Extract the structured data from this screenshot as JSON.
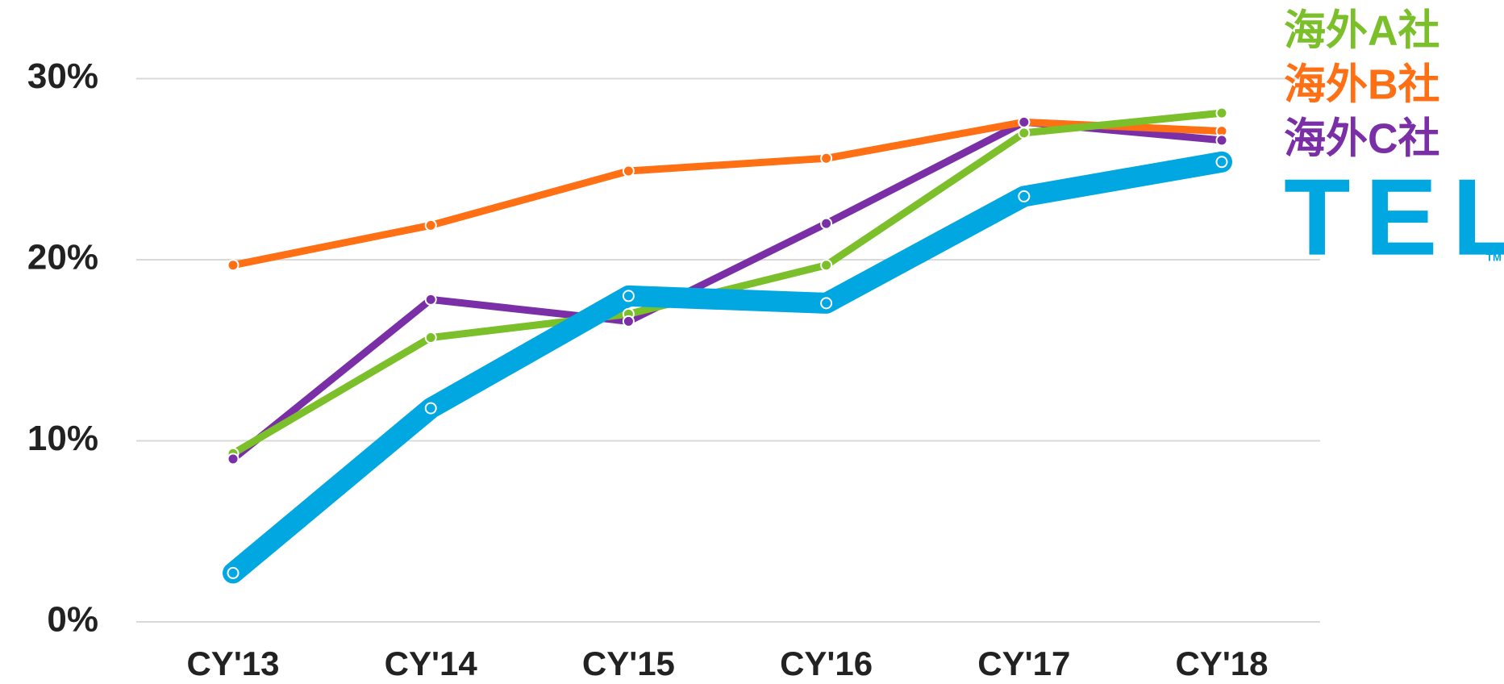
{
  "chart_data": {
    "type": "line",
    "categories": [
      "CY'13",
      "CY'14",
      "CY'15",
      "CY'16",
      "CY'17",
      "CY'18"
    ],
    "series": [
      {
        "name": "TEL",
        "color": "#00a7e1",
        "values": [
          2.7,
          11.8,
          18.0,
          17.6,
          23.5,
          25.4
        ]
      },
      {
        "name": "海外A社",
        "color": "#7bbf2a",
        "values": [
          9.3,
          15.7,
          17.0,
          19.7,
          27.0,
          28.1
        ]
      },
      {
        "name": "海外B社",
        "color": "#ff6f14",
        "values": [
          19.7,
          21.9,
          24.9,
          25.6,
          27.6,
          27.1
        ]
      },
      {
        "name": "海外C社",
        "color": "#7a2fa6",
        "values": [
          9.0,
          17.8,
          16.6,
          22.0,
          27.6,
          26.6
        ]
      }
    ],
    "ylim": [
      0,
      30
    ],
    "yticks": [
      {
        "value": 0,
        "label": "0%"
      },
      {
        "value": 10,
        "label": "10%"
      },
      {
        "value": 20,
        "label": "20%"
      },
      {
        "value": 30,
        "label": "30%"
      }
    ],
    "grid": true,
    "legend": "right",
    "trademark": "TM"
  }
}
